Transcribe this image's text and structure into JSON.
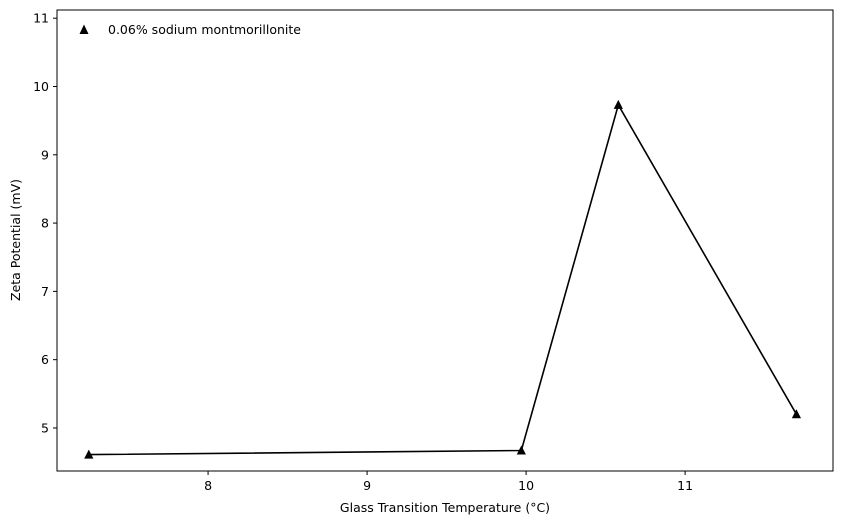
{
  "chart_data": {
    "type": "line",
    "xlabel": "Glass Transition Temperature (°C)",
    "ylabel": "Zeta Potential (mV)",
    "xlim": [
      7.05,
      11.93
    ],
    "ylim": [
      4.37,
      11.12
    ],
    "x_ticks": [
      8,
      9,
      10,
      11
    ],
    "y_ticks": [
      5,
      6,
      7,
      8,
      9,
      10,
      11
    ],
    "grid": false,
    "legend_position": "top-left",
    "series": [
      {
        "name": "0.06% sodium montmorillonite",
        "marker": "triangle",
        "color": "#000000",
        "x": [
          7.25,
          9.97,
          10.58,
          11.7
        ],
        "y": [
          4.61,
          4.67,
          9.73,
          5.2
        ]
      }
    ]
  }
}
